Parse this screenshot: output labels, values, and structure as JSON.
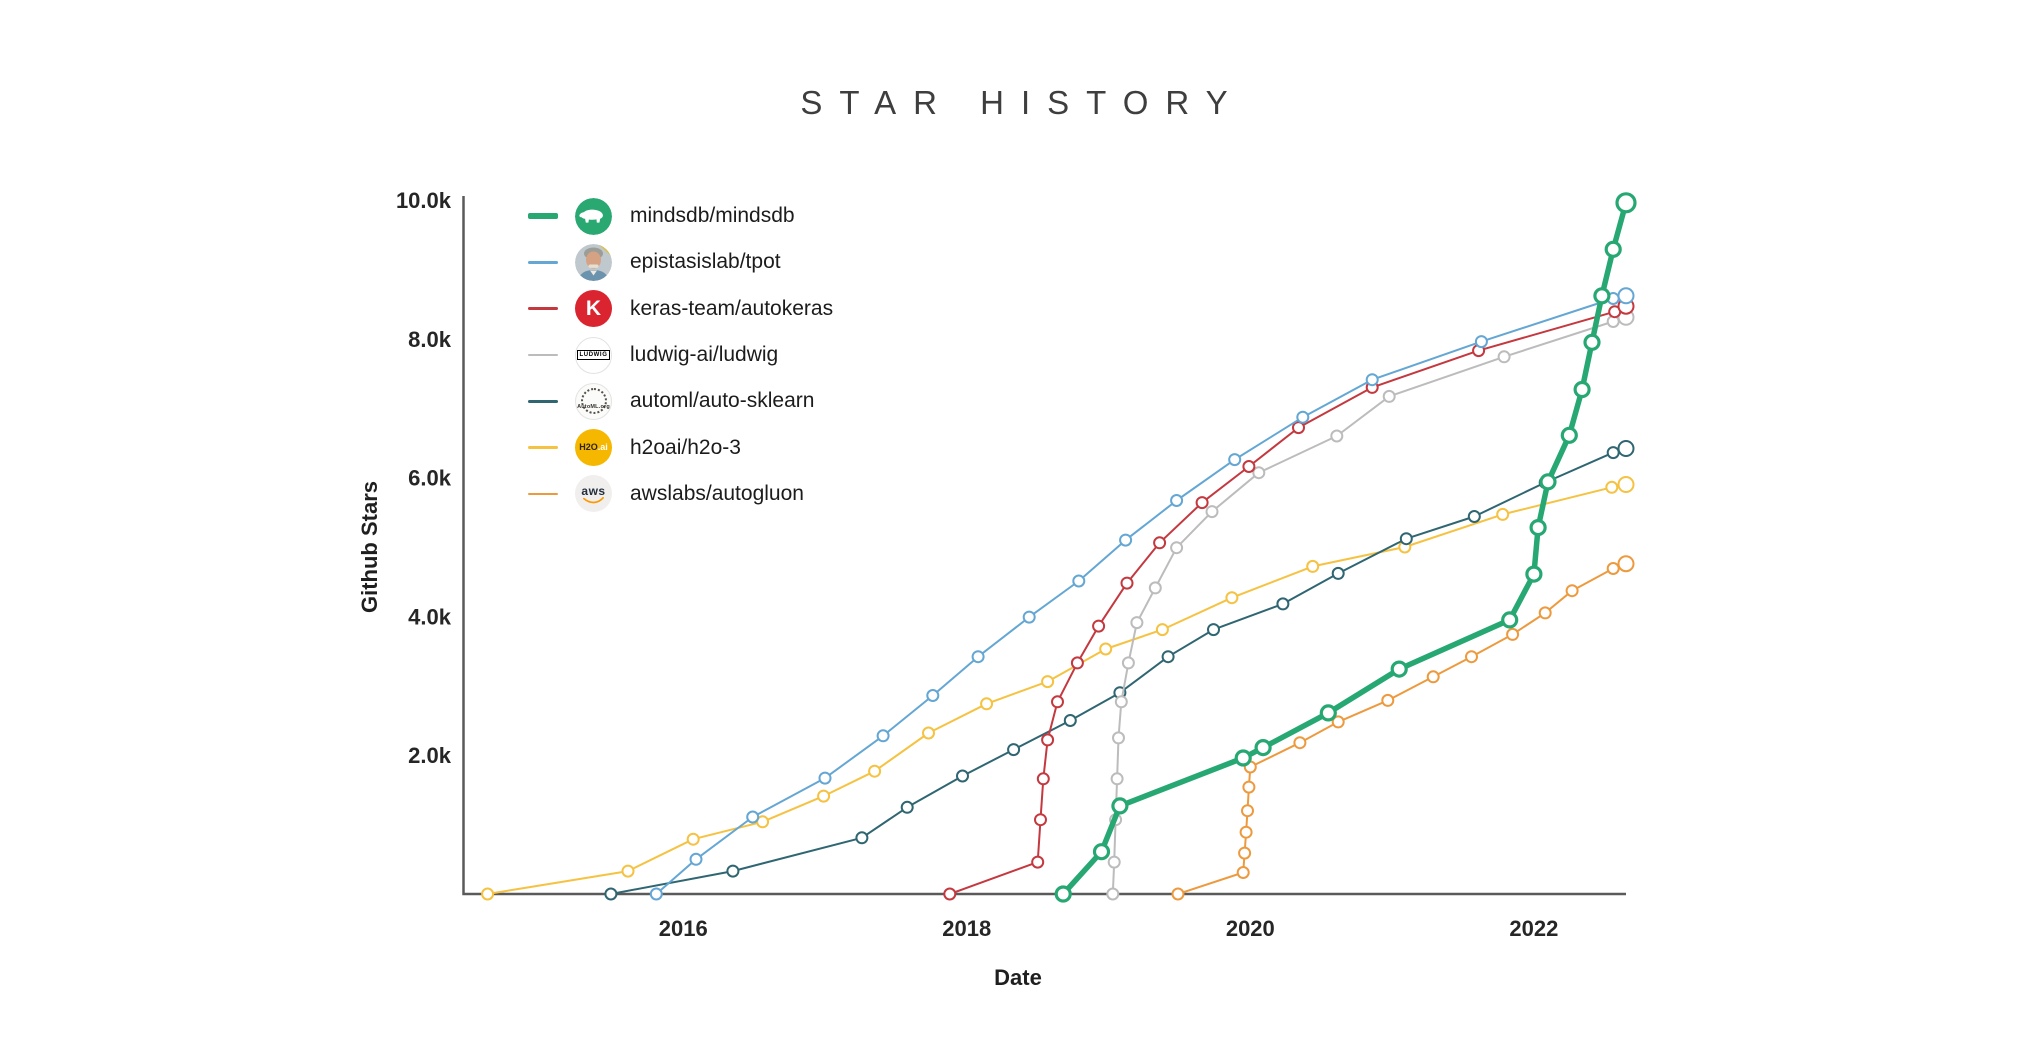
{
  "title": "STAR HISTORY",
  "chart_data": {
    "type": "line",
    "title": "STAR HISTORY",
    "xlabel": "Date",
    "ylabel": "Github Stars",
    "grid": false,
    "legend_position": "inside-top-left",
    "x_domain": [
      2014.45,
      2022.65
    ],
    "y_domain": [
      0,
      10000
    ],
    "x_ticks": [
      {
        "value": 2016,
        "label": "2016"
      },
      {
        "value": 2018,
        "label": "2018"
      },
      {
        "value": 2020,
        "label": "2020"
      },
      {
        "value": 2022,
        "label": "2022"
      }
    ],
    "y_ticks": [
      {
        "value": 2000,
        "label": "2.0k"
      },
      {
        "value": 4000,
        "label": "4.0k"
      },
      {
        "value": 6000,
        "label": "6.0k"
      },
      {
        "value": 8000,
        "label": "8.0k"
      },
      {
        "value": 10000,
        "label": "10.0k"
      }
    ],
    "axis_color": "#5a5a5a",
    "tick_color": "#262626",
    "series": [
      {
        "name": "mindsdb/mindsdb",
        "color": "#27a873",
        "line_width": 5.5,
        "marker_r": 7,
        "marker_stroke": 3.2,
        "avatar": {
          "kind": "bear",
          "bg": "#2aa871",
          "fg": "#ffffff"
        },
        "points": [
          [
            2018.68,
            0
          ],
          [
            2018.95,
            610
          ],
          [
            2019.08,
            1270
          ],
          [
            2019.95,
            1960
          ],
          [
            2020.09,
            2110
          ],
          [
            2020.55,
            2610
          ],
          [
            2021.05,
            3240
          ],
          [
            2021.83,
            3950
          ],
          [
            2022.0,
            4610
          ],
          [
            2022.03,
            5280
          ],
          [
            2022.1,
            5940
          ],
          [
            2022.25,
            6610
          ],
          [
            2022.34,
            7270
          ],
          [
            2022.41,
            7950
          ],
          [
            2022.48,
            8620
          ],
          [
            2022.56,
            9290
          ],
          [
            2022.65,
            9960
          ]
        ]
      },
      {
        "name": "epistasislab/tpot",
        "color": "#64a6d4",
        "line_width": 2,
        "marker_r": 5.5,
        "marker_stroke": 2,
        "avatar": {
          "kind": "photo"
        },
        "points": [
          [
            2015.81,
            0
          ],
          [
            2016.09,
            500
          ],
          [
            2016.49,
            1110
          ],
          [
            2017.0,
            1670
          ],
          [
            2017.41,
            2280
          ],
          [
            2017.76,
            2860
          ],
          [
            2018.08,
            3420
          ],
          [
            2018.44,
            3990
          ],
          [
            2018.79,
            4510
          ],
          [
            2019.12,
            5100
          ],
          [
            2019.48,
            5670
          ],
          [
            2019.89,
            6260
          ],
          [
            2020.37,
            6870
          ],
          [
            2020.86,
            7410
          ],
          [
            2021.63,
            7960
          ],
          [
            2022.56,
            8580
          ],
          [
            2022.65,
            8620
          ]
        ]
      },
      {
        "name": "keras-team/autokeras",
        "color": "#c4383f",
        "line_width": 2,
        "marker_r": 5.5,
        "marker_stroke": 2,
        "avatar": {
          "kind": "text",
          "text": "K",
          "bg": "#da2430",
          "fg": "#ffffff"
        },
        "points": [
          [
            2017.88,
            0
          ],
          [
            2018.5,
            460
          ],
          [
            2018.52,
            1070
          ],
          [
            2018.54,
            1660
          ],
          [
            2018.57,
            2220
          ],
          [
            2018.64,
            2770
          ],
          [
            2018.78,
            3330
          ],
          [
            2018.93,
            3860
          ],
          [
            2019.13,
            4480
          ],
          [
            2019.36,
            5060
          ],
          [
            2019.66,
            5640
          ],
          [
            2019.99,
            6160
          ],
          [
            2020.34,
            6720
          ],
          [
            2020.86,
            7300
          ],
          [
            2021.61,
            7830
          ],
          [
            2022.57,
            8390
          ],
          [
            2022.65,
            8470
          ]
        ]
      },
      {
        "name": "ludwig-ai/ludwig",
        "color": "#bcbcbc",
        "line_width": 2,
        "marker_r": 5.5,
        "marker_stroke": 2,
        "avatar": {
          "kind": "boxed-text",
          "text": "LUDWIG"
        },
        "points": [
          [
            2019.03,
            0
          ],
          [
            2019.04,
            460
          ],
          [
            2019.05,
            1070
          ],
          [
            2019.06,
            1660
          ],
          [
            2019.07,
            2250
          ],
          [
            2019.09,
            2770
          ],
          [
            2019.14,
            3330
          ],
          [
            2019.2,
            3910
          ],
          [
            2019.33,
            4410
          ],
          [
            2019.48,
            4990
          ],
          [
            2019.73,
            5510
          ],
          [
            2020.06,
            6070
          ],
          [
            2020.61,
            6600
          ],
          [
            2020.98,
            7170
          ],
          [
            2021.79,
            7740
          ],
          [
            2022.56,
            8250
          ],
          [
            2022.65,
            8310
          ]
        ]
      },
      {
        "name": "automl/auto-sklearn",
        "color": "#2f6672",
        "line_width": 2,
        "marker_r": 5.5,
        "marker_stroke": 2,
        "avatar": {
          "kind": "stamp",
          "text": "AutoML.org"
        },
        "points": [
          [
            2015.49,
            0
          ],
          [
            2016.35,
            330
          ],
          [
            2017.26,
            810
          ],
          [
            2017.58,
            1250
          ],
          [
            2017.97,
            1700
          ],
          [
            2018.33,
            2080
          ],
          [
            2018.73,
            2500
          ],
          [
            2019.08,
            2900
          ],
          [
            2019.42,
            3420
          ],
          [
            2019.74,
            3810
          ],
          [
            2020.23,
            4180
          ],
          [
            2020.62,
            4620
          ],
          [
            2021.1,
            5120
          ],
          [
            2021.58,
            5440
          ],
          [
            2022.08,
            5930
          ],
          [
            2022.56,
            6360
          ],
          [
            2022.65,
            6420
          ]
        ]
      },
      {
        "name": "h2oai/h2o-3",
        "color": "#f5c242",
        "line_width": 2,
        "marker_r": 5.5,
        "marker_stroke": 2,
        "avatar": {
          "kind": "h2o",
          "text1": "H2O",
          "text2": ".ai",
          "bg": "#f5b700",
          "fg1": "#2e2414",
          "fg2": "#ffffff"
        },
        "points": [
          [
            2014.62,
            0
          ],
          [
            2015.61,
            330
          ],
          [
            2016.07,
            790
          ],
          [
            2016.56,
            1040
          ],
          [
            2016.99,
            1410
          ],
          [
            2017.35,
            1770
          ],
          [
            2017.73,
            2320
          ],
          [
            2018.14,
            2740
          ],
          [
            2018.57,
            3060
          ],
          [
            2018.98,
            3530
          ],
          [
            2019.38,
            3810
          ],
          [
            2019.87,
            4270
          ],
          [
            2020.44,
            4720
          ],
          [
            2021.09,
            5000
          ],
          [
            2021.78,
            5470
          ],
          [
            2022.55,
            5860
          ],
          [
            2022.65,
            5900
          ]
        ]
      },
      {
        "name": "awslabs/autogluon",
        "color": "#ed9a3f",
        "line_width": 2,
        "marker_r": 5.5,
        "marker_stroke": 2,
        "avatar": {
          "kind": "aws",
          "text": "aws",
          "bg": "#f1efed",
          "fg": "#232f3e",
          "accent": "#ff9900"
        },
        "points": [
          [
            2019.49,
            0
          ],
          [
            2019.95,
            310
          ],
          [
            2019.96,
            590
          ],
          [
            2019.97,
            890
          ],
          [
            2019.98,
            1200
          ],
          [
            2019.99,
            1540
          ],
          [
            2020.0,
            1830
          ],
          [
            2020.35,
            2180
          ],
          [
            2020.62,
            2480
          ],
          [
            2020.97,
            2790
          ],
          [
            2021.29,
            3130
          ],
          [
            2021.56,
            3420
          ],
          [
            2021.85,
            3740
          ],
          [
            2022.08,
            4050
          ],
          [
            2022.27,
            4370
          ],
          [
            2022.56,
            4690
          ],
          [
            2022.65,
            4760
          ]
        ]
      }
    ]
  }
}
